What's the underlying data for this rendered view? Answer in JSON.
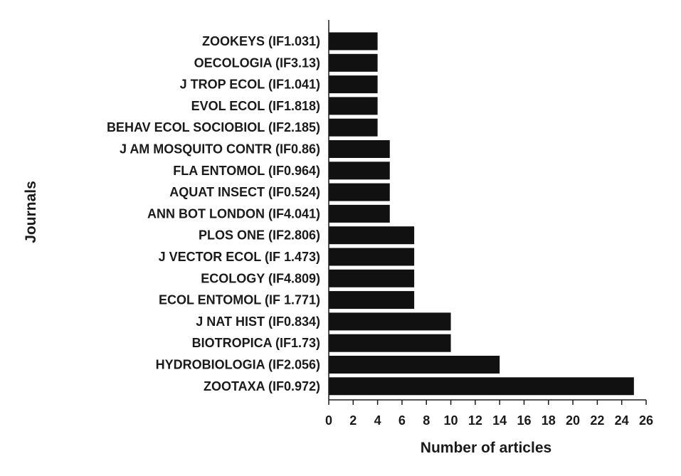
{
  "chart_data": {
    "type": "bar",
    "orientation": "horizontal",
    "title": "",
    "xlabel": "Number of articles",
    "ylabel": "Journals",
    "xlim": [
      0,
      26
    ],
    "xticks": [
      0,
      2,
      4,
      6,
      8,
      10,
      12,
      14,
      16,
      18,
      20,
      22,
      24,
      26
    ],
    "grid": false,
    "legend": "none",
    "bar_color": "#111111",
    "categories": [
      "ZOOKEYS (IF1.031)",
      "OECOLOGIA (IF3.13)",
      "J TROP ECOL (IF1.041)",
      "EVOL ECOL (IF1.818)",
      "BEHAV ECOL SOCIOBIOL (IF2.185)",
      "J AM MOSQUITO CONTR (IF0.86)",
      "FLA ENTOMOL (IF0.964)",
      "AQUAT INSECT (IF0.524)",
      "ANN BOT LONDON (IF4.041)",
      "PLOS ONE (IF2.806)",
      "J VECTOR ECOL (IF 1.473)",
      "ECOLOGY (IF4.809)",
      "ECOL ENTOMOL (IF 1.771)",
      "J NAT HIST (IF0.834)",
      "BIOTROPICA (IF1.73)",
      "HYDROBIOLOGIA (IF2.056)",
      "ZOOTAXA (IF0.972)"
    ],
    "values": [
      4,
      4,
      4,
      4,
      4,
      5,
      5,
      5,
      5,
      7,
      7,
      7,
      7,
      10,
      10,
      14,
      25
    ]
  }
}
